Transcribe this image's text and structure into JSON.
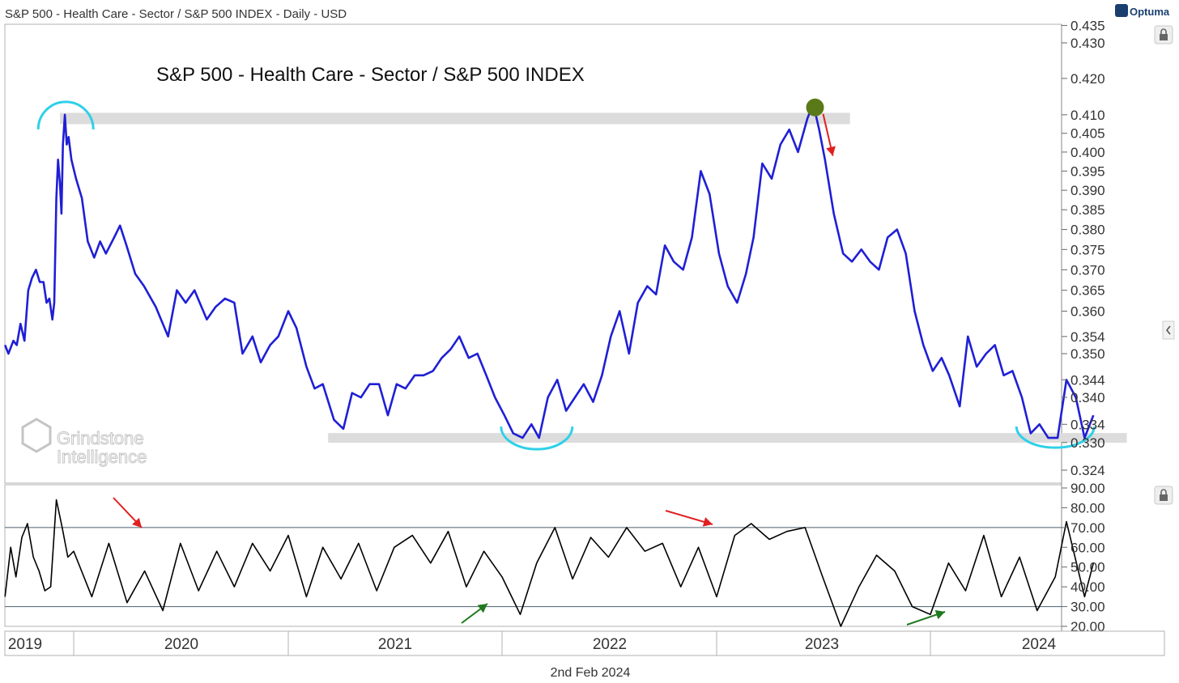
{
  "header": {
    "symbol_title": "S&P 500 - Health Care - Sector / S&P 500 INDEX - Daily - USD",
    "brand": "Optuma",
    "date_label": "2nd Feb 2024"
  },
  "watermark": {
    "line1": "Grindstone",
    "line2": "Intelligence"
  },
  "colors": {
    "price_line": "#1f1fd6",
    "rsi_line": "#000000",
    "support_band": "#dcdcdc",
    "arc": "#2fd0e8",
    "down_arrow": "#e02020",
    "up_arrow": "#1f7a1f",
    "peak_marker": "#5a7a1a"
  },
  "chart_data": [
    {
      "type": "line",
      "title": "S&P 500 - Health Care - Sector / S&P 500 INDEX",
      "xlabel": "",
      "ylabel": "",
      "ylim": [
        0.322,
        0.436
      ],
      "y_scale": "log",
      "y_ticks": [
        "0.435",
        "0.430",
        "0.420",
        "0.410",
        "0.405",
        "0.400",
        "0.395",
        "0.390",
        "0.385",
        "0.380",
        "0.375",
        "0.370",
        "0.365",
        "0.360",
        "0.354",
        "0.350",
        "0.344",
        "0.340",
        "0.334",
        "0.330",
        "0.324"
      ],
      "series": [
        {
          "values": [
            [
              "2019-01-02",
              0.352
            ],
            [
              "2019-01-20",
              0.35
            ],
            [
              "2019-02-15",
              0.353
            ],
            [
              "2019-03-05",
              0.352
            ],
            [
              "2019-03-25",
              0.357
            ],
            [
              "2019-04-15",
              0.353
            ],
            [
              "2019-05-05",
              0.365
            ],
            [
              "2019-05-25",
              0.368
            ],
            [
              "2019-06-15",
              0.37
            ],
            [
              "2019-07-05",
              0.367
            ],
            [
              "2019-07-25",
              0.367
            ],
            [
              "2019-08-10",
              0.362
            ],
            [
              "2019-08-25",
              0.363
            ],
            [
              "2019-09-10",
              0.358
            ],
            [
              "2019-09-20",
              0.362
            ],
            [
              "2019-10-01",
              0.388
            ],
            [
              "2019-10-10",
              0.398
            ],
            [
              "2019-10-20",
              0.392
            ],
            [
              "2019-10-28",
              0.384
            ],
            [
              "2019-11-05",
              0.402
            ],
            [
              "2019-11-15",
              0.41
            ],
            [
              "2019-11-25",
              0.402
            ],
            [
              "2019-12-05",
              0.404
            ],
            [
              "2019-12-20",
              0.398
            ],
            [
              "2020-01-05",
              0.393
            ],
            [
              "2020-01-15",
              0.388
            ],
            [
              "2020-01-25",
              0.377
            ],
            [
              "2020-02-05",
              0.373
            ],
            [
              "2020-02-15",
              0.377
            ],
            [
              "2020-02-25",
              0.374
            ],
            [
              "2020-03-10",
              0.378
            ],
            [
              "2020-03-20",
              0.381
            ],
            [
              "2020-03-31",
              0.376
            ],
            [
              "2020-04-15",
              0.369
            ],
            [
              "2020-04-30",
              0.366
            ],
            [
              "2020-05-20",
              0.361
            ],
            [
              "2020-06-10",
              0.354
            ],
            [
              "2020-06-25",
              0.365
            ],
            [
              "2020-07-10",
              0.362
            ],
            [
              "2020-07-25",
              0.365
            ],
            [
              "2020-08-15",
              0.358
            ],
            [
              "2020-08-30",
              0.361
            ],
            [
              "2020-09-15",
              0.363
            ],
            [
              "2020-10-01",
              0.362
            ],
            [
              "2020-10-15",
              0.35
            ],
            [
              "2020-11-01",
              0.354
            ],
            [
              "2020-11-15",
              0.348
            ],
            [
              "2020-12-01",
              0.352
            ],
            [
              "2020-12-15",
              0.354
            ],
            [
              "2021-01-01",
              0.36
            ],
            [
              "2021-01-15",
              0.356
            ],
            [
              "2021-02-01",
              0.347
            ],
            [
              "2021-02-15",
              0.342
            ],
            [
              "2021-03-01",
              0.343
            ],
            [
              "2021-03-20",
              0.335
            ],
            [
              "2021-04-05",
              0.333
            ],
            [
              "2021-04-20",
              0.341
            ],
            [
              "2021-05-05",
              0.34
            ],
            [
              "2021-05-20",
              0.343
            ],
            [
              "2021-06-05",
              0.343
            ],
            [
              "2021-06-20",
              0.336
            ],
            [
              "2021-07-05",
              0.343
            ],
            [
              "2021-07-20",
              0.342
            ],
            [
              "2021-08-05",
              0.345
            ],
            [
              "2021-08-20",
              0.345
            ],
            [
              "2021-09-05",
              0.346
            ],
            [
              "2021-09-20",
              0.349
            ],
            [
              "2021-10-05",
              0.351
            ],
            [
              "2021-10-20",
              0.354
            ],
            [
              "2021-11-05",
              0.349
            ],
            [
              "2021-11-20",
              0.35
            ],
            [
              "2021-12-05",
              0.345
            ],
            [
              "2021-12-20",
              0.34
            ],
            [
              "2022-01-05",
              0.336
            ],
            [
              "2022-01-20",
              0.332
            ],
            [
              "2022-02-05",
              0.331
            ],
            [
              "2022-02-20",
              0.334
            ],
            [
              "2022-03-05",
              0.331
            ],
            [
              "2022-03-20",
              0.34
            ],
            [
              "2022-04-05",
              0.344
            ],
            [
              "2022-04-20",
              0.337
            ],
            [
              "2022-05-05",
              0.34
            ],
            [
              "2022-05-20",
              0.343
            ],
            [
              "2022-06-05",
              0.339
            ],
            [
              "2022-06-20",
              0.345
            ],
            [
              "2022-07-05",
              0.354
            ],
            [
              "2022-07-20",
              0.36
            ],
            [
              "2022-08-05",
              0.35
            ],
            [
              "2022-08-20",
              0.362
            ],
            [
              "2022-09-05",
              0.366
            ],
            [
              "2022-09-20",
              0.364
            ],
            [
              "2022-10-05",
              0.376
            ],
            [
              "2022-10-20",
              0.372
            ],
            [
              "2022-11-05",
              0.37
            ],
            [
              "2022-11-20",
              0.378
            ],
            [
              "2022-12-05",
              0.395
            ],
            [
              "2022-12-20",
              0.389
            ],
            [
              "2023-01-05",
              0.374
            ],
            [
              "2023-01-20",
              0.366
            ],
            [
              "2023-02-05",
              0.362
            ],
            [
              "2023-02-20",
              0.369
            ],
            [
              "2023-03-05",
              0.378
            ],
            [
              "2023-03-20",
              0.397
            ],
            [
              "2023-04-05",
              0.393
            ],
            [
              "2023-04-20",
              0.402
            ],
            [
              "2023-05-05",
              0.406
            ],
            [
              "2023-05-20",
              0.4
            ],
            [
              "2023-06-05",
              0.409
            ],
            [
              "2023-06-15",
              0.413
            ],
            [
              "2023-06-25",
              0.406
            ],
            [
              "2023-07-05",
              0.398
            ],
            [
              "2023-07-20",
              0.384
            ],
            [
              "2023-08-05",
              0.374
            ],
            [
              "2023-08-20",
              0.372
            ],
            [
              "2023-09-05",
              0.375
            ],
            [
              "2023-09-20",
              0.372
            ],
            [
              "2023-10-05",
              0.37
            ],
            [
              "2023-10-20",
              0.378
            ],
            [
              "2023-11-05",
              0.38
            ],
            [
              "2023-11-20",
              0.374
            ],
            [
              "2023-12-05",
              0.36
            ],
            [
              "2023-12-20",
              0.352
            ],
            [
              "2024-01-05",
              0.346
            ],
            [
              "2024-01-20",
              0.349
            ],
            [
              "2024-02-02",
              0.345
            ],
            [
              "2024-02-20",
              0.338
            ],
            [
              "2024-03-05",
              0.354
            ],
            [
              "2024-03-20",
              0.347
            ],
            [
              "2024-04-05",
              0.35
            ],
            [
              "2024-04-20",
              0.352
            ],
            [
              "2024-05-05",
              0.345
            ],
            [
              "2024-05-20",
              0.346
            ],
            [
              "2024-06-05",
              0.34
            ],
            [
              "2024-06-20",
              0.332
            ],
            [
              "2024-07-05",
              0.334
            ],
            [
              "2024-07-20",
              0.331
            ],
            [
              "2024-08-05",
              0.331
            ],
            [
              "2024-08-20",
              0.344
            ],
            [
              "2024-09-05",
              0.34
            ],
            [
              "2024-09-20",
              0.331
            ],
            [
              "2024-10-05",
              0.336
            ]
          ]
        }
      ],
      "annotations": {
        "resistance_level": 0.409,
        "support_level": 0.331,
        "peak": [
          "2023-06-18",
          0.412
        ]
      }
    },
    {
      "type": "line",
      "title": "",
      "ylim": [
        20,
        90
      ],
      "y_ticks": [
        "90.00",
        "80.00",
        "70.00",
        "60.00",
        "50.00",
        "40.00",
        "30.00",
        "20.00"
      ],
      "reference_lines": [
        70,
        30
      ],
      "series": [
        {
          "values": [
            [
              "2019-01-02",
              35
            ],
            [
              "2019-02-01",
              60
            ],
            [
              "2019-03-01",
              45
            ],
            [
              "2019-04-01",
              65
            ],
            [
              "2019-05-01",
              72
            ],
            [
              "2019-06-01",
              55
            ],
            [
              "2019-07-01",
              48
            ],
            [
              "2019-08-01",
              38
            ],
            [
              "2019-09-01",
              40
            ],
            [
              "2019-10-01",
              84
            ],
            [
              "2019-11-01",
              70
            ],
            [
              "2019-12-01",
              55
            ],
            [
              "2020-01-01",
              58
            ],
            [
              "2020-02-01",
              35
            ],
            [
              "2020-03-01",
              62
            ],
            [
              "2020-04-01",
              32
            ],
            [
              "2020-05-01",
              48
            ],
            [
              "2020-06-01",
              28
            ],
            [
              "2020-07-01",
              62
            ],
            [
              "2020-08-01",
              38
            ],
            [
              "2020-09-01",
              58
            ],
            [
              "2020-10-01",
              40
            ],
            [
              "2020-11-01",
              62
            ],
            [
              "2020-12-01",
              48
            ],
            [
              "2021-01-01",
              66
            ],
            [
              "2021-02-01",
              35
            ],
            [
              "2021-03-01",
              60
            ],
            [
              "2021-04-01",
              44
            ],
            [
              "2021-05-01",
              62
            ],
            [
              "2021-06-01",
              38
            ],
            [
              "2021-07-01",
              60
            ],
            [
              "2021-08-01",
              66
            ],
            [
              "2021-09-01",
              52
            ],
            [
              "2021-10-01",
              68
            ],
            [
              "2021-11-01",
              40
            ],
            [
              "2021-12-01",
              58
            ],
            [
              "2022-01-01",
              45
            ],
            [
              "2022-02-01",
              26
            ],
            [
              "2022-03-01",
              52
            ],
            [
              "2022-04-01",
              70
            ],
            [
              "2022-05-01",
              44
            ],
            [
              "2022-06-01",
              65
            ],
            [
              "2022-07-01",
              55
            ],
            [
              "2022-08-01",
              70
            ],
            [
              "2022-09-01",
              58
            ],
            [
              "2022-10-01",
              62
            ],
            [
              "2022-11-01",
              40
            ],
            [
              "2022-12-01",
              60
            ],
            [
              "2023-01-01",
              35
            ],
            [
              "2023-02-01",
              66
            ],
            [
              "2023-03-01",
              72
            ],
            [
              "2023-04-01",
              64
            ],
            [
              "2023-05-01",
              68
            ],
            [
              "2023-06-01",
              70
            ],
            [
              "2023-07-01",
              45
            ],
            [
              "2023-08-01",
              20
            ],
            [
              "2023-09-01",
              40
            ],
            [
              "2023-10-01",
              56
            ],
            [
              "2023-11-01",
              48
            ],
            [
              "2023-12-01",
              30
            ],
            [
              "2024-01-01",
              26
            ],
            [
              "2024-02-01",
              52
            ],
            [
              "2024-03-01",
              38
            ],
            [
              "2024-04-01",
              66
            ],
            [
              "2024-05-01",
              35
            ],
            [
              "2024-06-01",
              55
            ],
            [
              "2024-07-01",
              28
            ],
            [
              "2024-08-01",
              45
            ],
            [
              "2024-08-20",
              73
            ],
            [
              "2024-09-20",
              35
            ],
            [
              "2024-10-05",
              52
            ]
          ]
        }
      ]
    }
  ],
  "x_axis": {
    "labels": [
      "2019",
      "2020",
      "2021",
      "2022",
      "2023",
      "2024"
    ]
  }
}
